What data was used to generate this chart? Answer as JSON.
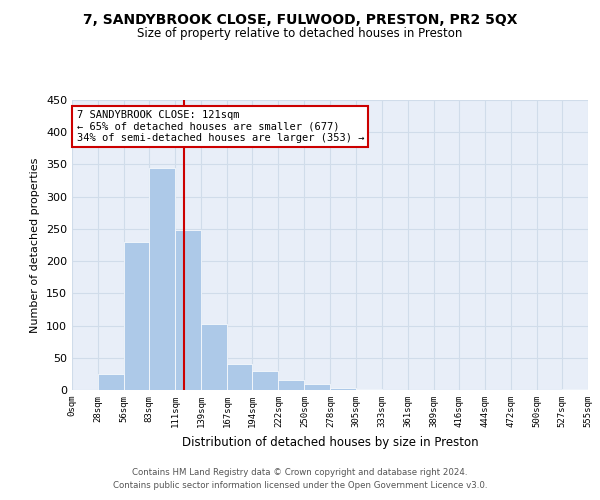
{
  "title1": "7, SANDYBROOK CLOSE, FULWOOD, PRESTON, PR2 5QX",
  "title2": "Size of property relative to detached houses in Preston",
  "xlabel": "Distribution of detached houses by size in Preston",
  "ylabel": "Number of detached properties",
  "bar_color": "#adc9e8",
  "bin_edges": [
    0,
    28,
    56,
    83,
    111,
    139,
    167,
    194,
    222,
    250,
    278,
    305,
    333,
    361,
    389,
    416,
    444,
    472,
    500,
    527,
    555
  ],
  "bar_heights": [
    0,
    25,
    230,
    345,
    248,
    103,
    41,
    30,
    16,
    10,
    3,
    1,
    0,
    0,
    0,
    0,
    0,
    0,
    0,
    1
  ],
  "tick_labels": [
    "0sqm",
    "28sqm",
    "56sqm",
    "83sqm",
    "111sqm",
    "139sqm",
    "167sqm",
    "194sqm",
    "222sqm",
    "250sqm",
    "278sqm",
    "305sqm",
    "333sqm",
    "361sqm",
    "389sqm",
    "416sqm",
    "444sqm",
    "472sqm",
    "500sqm",
    "527sqm",
    "555sqm"
  ],
  "vline_x": 121,
  "vline_color": "#cc0000",
  "ylim": [
    0,
    450
  ],
  "yticks": [
    0,
    50,
    100,
    150,
    200,
    250,
    300,
    350,
    400,
    450
  ],
  "annotation_title": "7 SANDYBROOK CLOSE: 121sqm",
  "annotation_line1": "← 65% of detached houses are smaller (677)",
  "annotation_line2": "34% of semi-detached houses are larger (353) →",
  "annotation_box_color": "#ffffff",
  "annotation_box_edge": "#cc0000",
  "grid_color": "#d0dcea",
  "background_color": "#e8eef8",
  "footnote1": "Contains HM Land Registry data © Crown copyright and database right 2024.",
  "footnote2": "Contains public sector information licensed under the Open Government Licence v3.0."
}
